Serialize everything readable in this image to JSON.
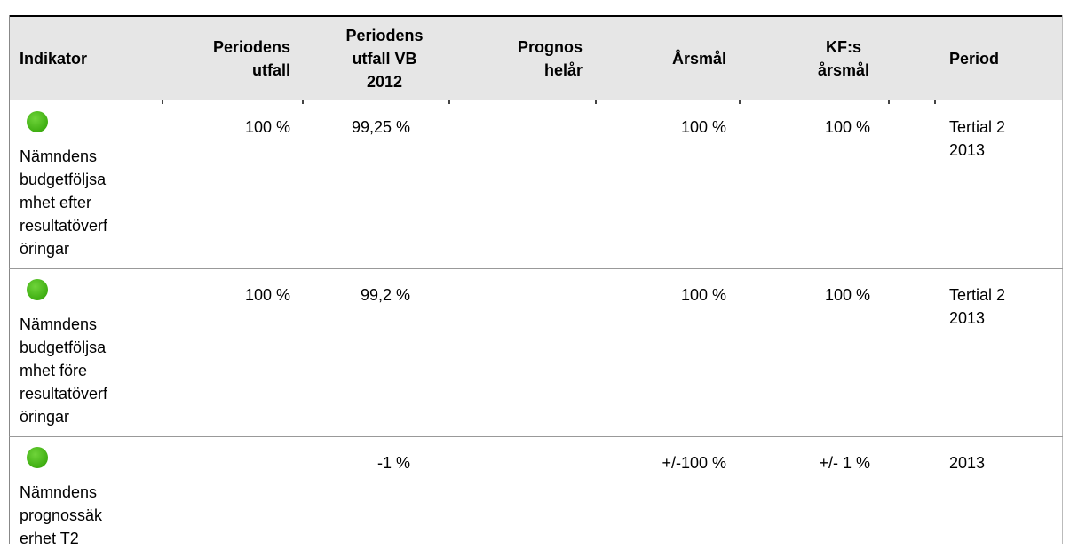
{
  "table": {
    "headers": [
      "Indikator",
      "Periodens utfall",
      "Periodens utfall VB 2012",
      "Prognos helår",
      "Årsmål",
      "KF:s årsmål",
      "Period"
    ],
    "rows": [
      {
        "indikator": [
          "Nämndens",
          "budgetföljsa",
          "mhet efter",
          "resultatöverf",
          "öringar"
        ],
        "utfall": "100 %",
        "utfall_vb": "99,25 %",
        "arsmal": "100 %",
        "kf_arsmal": "100 %",
        "period": "Tertial 2 2013"
      },
      {
        "indikator": [
          "Nämndens",
          "budgetföljsa",
          "mhet före",
          "resultatöverf",
          "öringar"
        ],
        "utfall": "100 %",
        "utfall_vb": "99,2 %",
        "arsmal": "100 %",
        "kf_arsmal": "100 %",
        "period": "Tertial 2 2013"
      },
      {
        "indikator": [
          "Nämndens",
          "prognossäk",
          "erhet T2"
        ],
        "utfall_vb": "-1 %",
        "arsmal": "+/-100 %",
        "kf_arsmal": "+/- 1 %",
        "period": "2013"
      }
    ]
  }
}
